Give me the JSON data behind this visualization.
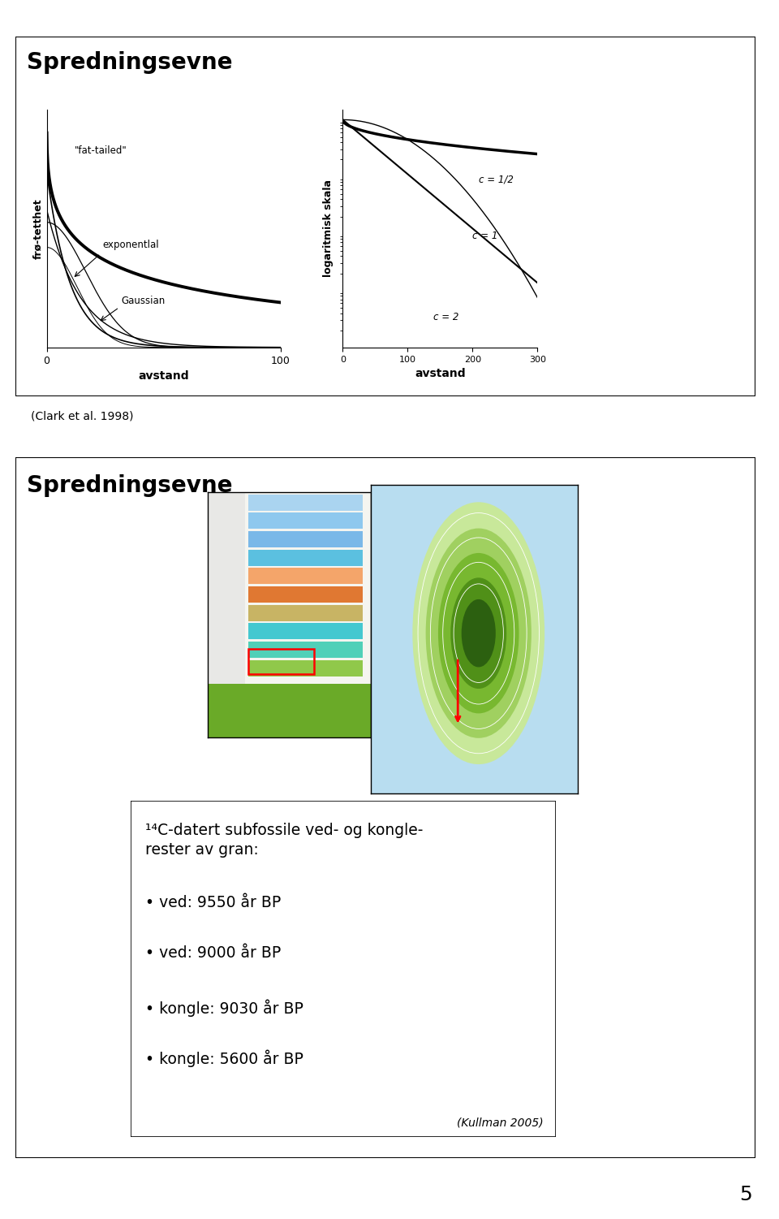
{
  "title1": "Spredningsevne",
  "title2": "Spredningsevne",
  "slide_bg": "#ffffff",
  "border_color": "#000000",
  "page_number": "5",
  "citation1": "(Clark et al. 1998)",
  "citation2": "(Kullman 2005)",
  "text_box_title": "¹⁴C-datert subfossile ved- og kongle-\nrester av gran:",
  "bullet_items": [
    "• ved: 9550 år BP",
    "• ved: 9000 år BP",
    "• kongle: 9030 år BP",
    "• kongle: 5600 år BP"
  ],
  "graph1_ylabel": "frø-tetthet",
  "graph1_xlabel": "avstand",
  "graph1_labels": [
    "\"fat-tailed\"",
    "exponentlal",
    "Gaussian"
  ],
  "graph2_ylabel": "logaritmisk skala",
  "graph2_xlabel": "avstand",
  "graph2_xticks": [
    "0",
    "100 200 300"
  ],
  "graph2_labels": [
    "c = 1/2",
    "c = 1",
    "c = 2"
  ],
  "title_fontsize": 20,
  "body_fontsize": 14,
  "small_fontsize": 11
}
